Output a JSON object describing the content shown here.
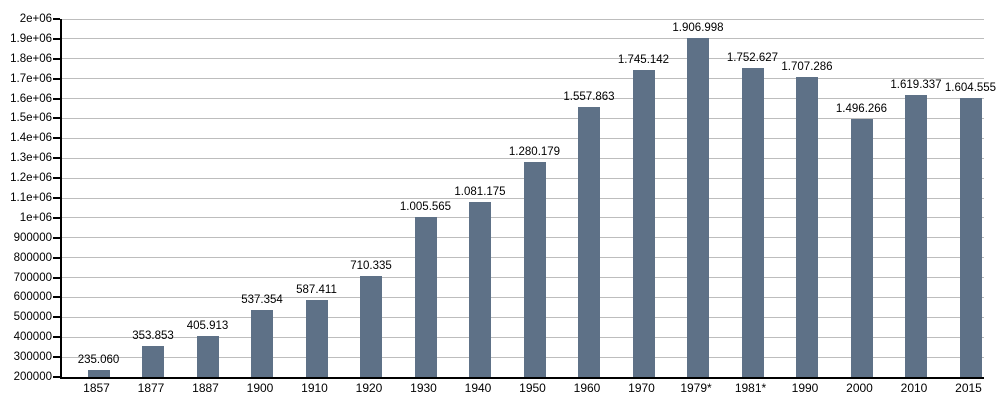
{
  "chart_data": {
    "type": "bar",
    "title": "",
    "xlabel": "",
    "ylabel": "",
    "categories": [
      "1857",
      "1877",
      "1887",
      "1900",
      "1910",
      "1920",
      "1930",
      "1940",
      "1950",
      "1960",
      "1970",
      "1979*",
      "1981*",
      "1990",
      "2000",
      "2010",
      "2015"
    ],
    "values": [
      235060,
      353853,
      405913,
      537354,
      587411,
      710335,
      1005565,
      1081175,
      1280179,
      1557863,
      1745142,
      1906998,
      1752627,
      1707286,
      1496266,
      1619337,
      1604555
    ],
    "value_labels": [
      "235.060",
      "353.853",
      "405.913",
      "537.354",
      "587.411",
      "710.335",
      "1.005.565",
      "1.081.175",
      "1.280.179",
      "1.557.863",
      "1.745.142",
      "1.906.998",
      "1.752.627",
      "1.707.286",
      "1.496.266",
      "1.619.337",
      "1.604.555"
    ],
    "ylim": [
      200000,
      2000000
    ],
    "y_tick_step": 100000,
    "y_tick_labels_bottom_to_top": [
      "200000",
      "300000",
      "400000",
      "500000",
      "600000",
      "700000",
      "800000",
      "900000",
      "1e+06",
      "1.1e+06",
      "1.2e+06",
      "1.3e+06",
      "1.4e+06",
      "1.5e+06",
      "1.6e+06",
      "1.7e+06",
      "1.8e+06",
      "1.9e+06",
      "2e+06"
    ],
    "grid": "horizontal",
    "legend_position": "none",
    "bar_color": "#5e7187",
    "grid_color": "#bdbdbd",
    "axis_color": "#000000",
    "text_color": "#000000",
    "background_color": "#ffffff"
  }
}
